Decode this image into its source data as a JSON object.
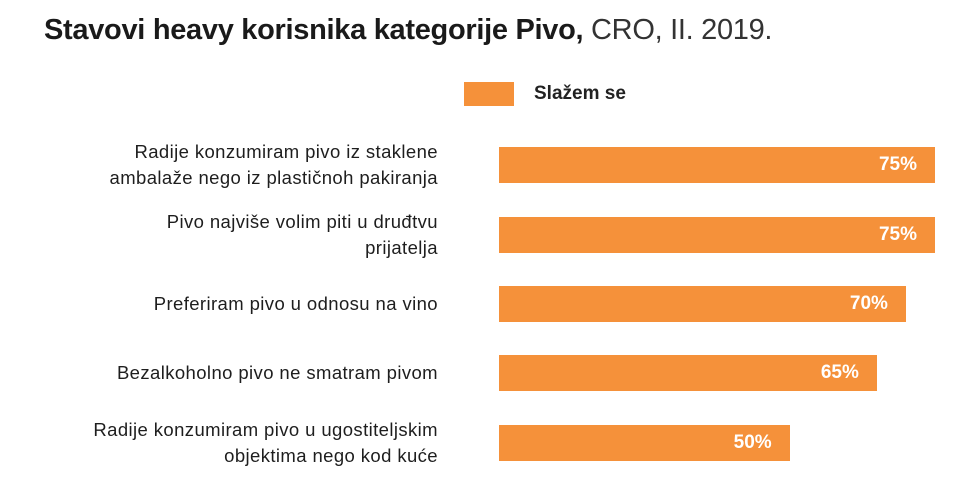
{
  "title": {
    "bold": "Stavovi heavy korisnika kategorije Pivo,",
    "rest": "CRO, II. 2019."
  },
  "legend": {
    "label": "Slažem se"
  },
  "colors": {
    "bar": "#f5913a"
  },
  "chart_data": {
    "type": "bar",
    "orientation": "horizontal",
    "title": "Stavovi heavy korisnika kategorije Pivo, CRO, II. 2019.",
    "categories": [
      [
        "Radije konzumiram pivo iz staklene",
        "ambalaže nego iz plastičnoh pakiranja"
      ],
      [
        "Pivo najviše volim piti u druđtvu",
        "prijatelja"
      ],
      [
        "Preferiram pivo u odnosu na vino"
      ],
      [
        "Bezalkoholno pivo ne smatram pivom"
      ],
      [
        "Radije konzumiram pivo u ugostiteljskim",
        "objektima nego kod kuće"
      ]
    ],
    "series": [
      {
        "name": "Slažem se",
        "values": [
          75,
          75,
          70,
          65,
          50
        ],
        "labels": [
          "75%",
          "75%",
          "70%",
          "65%",
          "50%"
        ]
      }
    ],
    "xlim": [
      0,
      75
    ],
    "grid": false,
    "legend_position": "top"
  }
}
